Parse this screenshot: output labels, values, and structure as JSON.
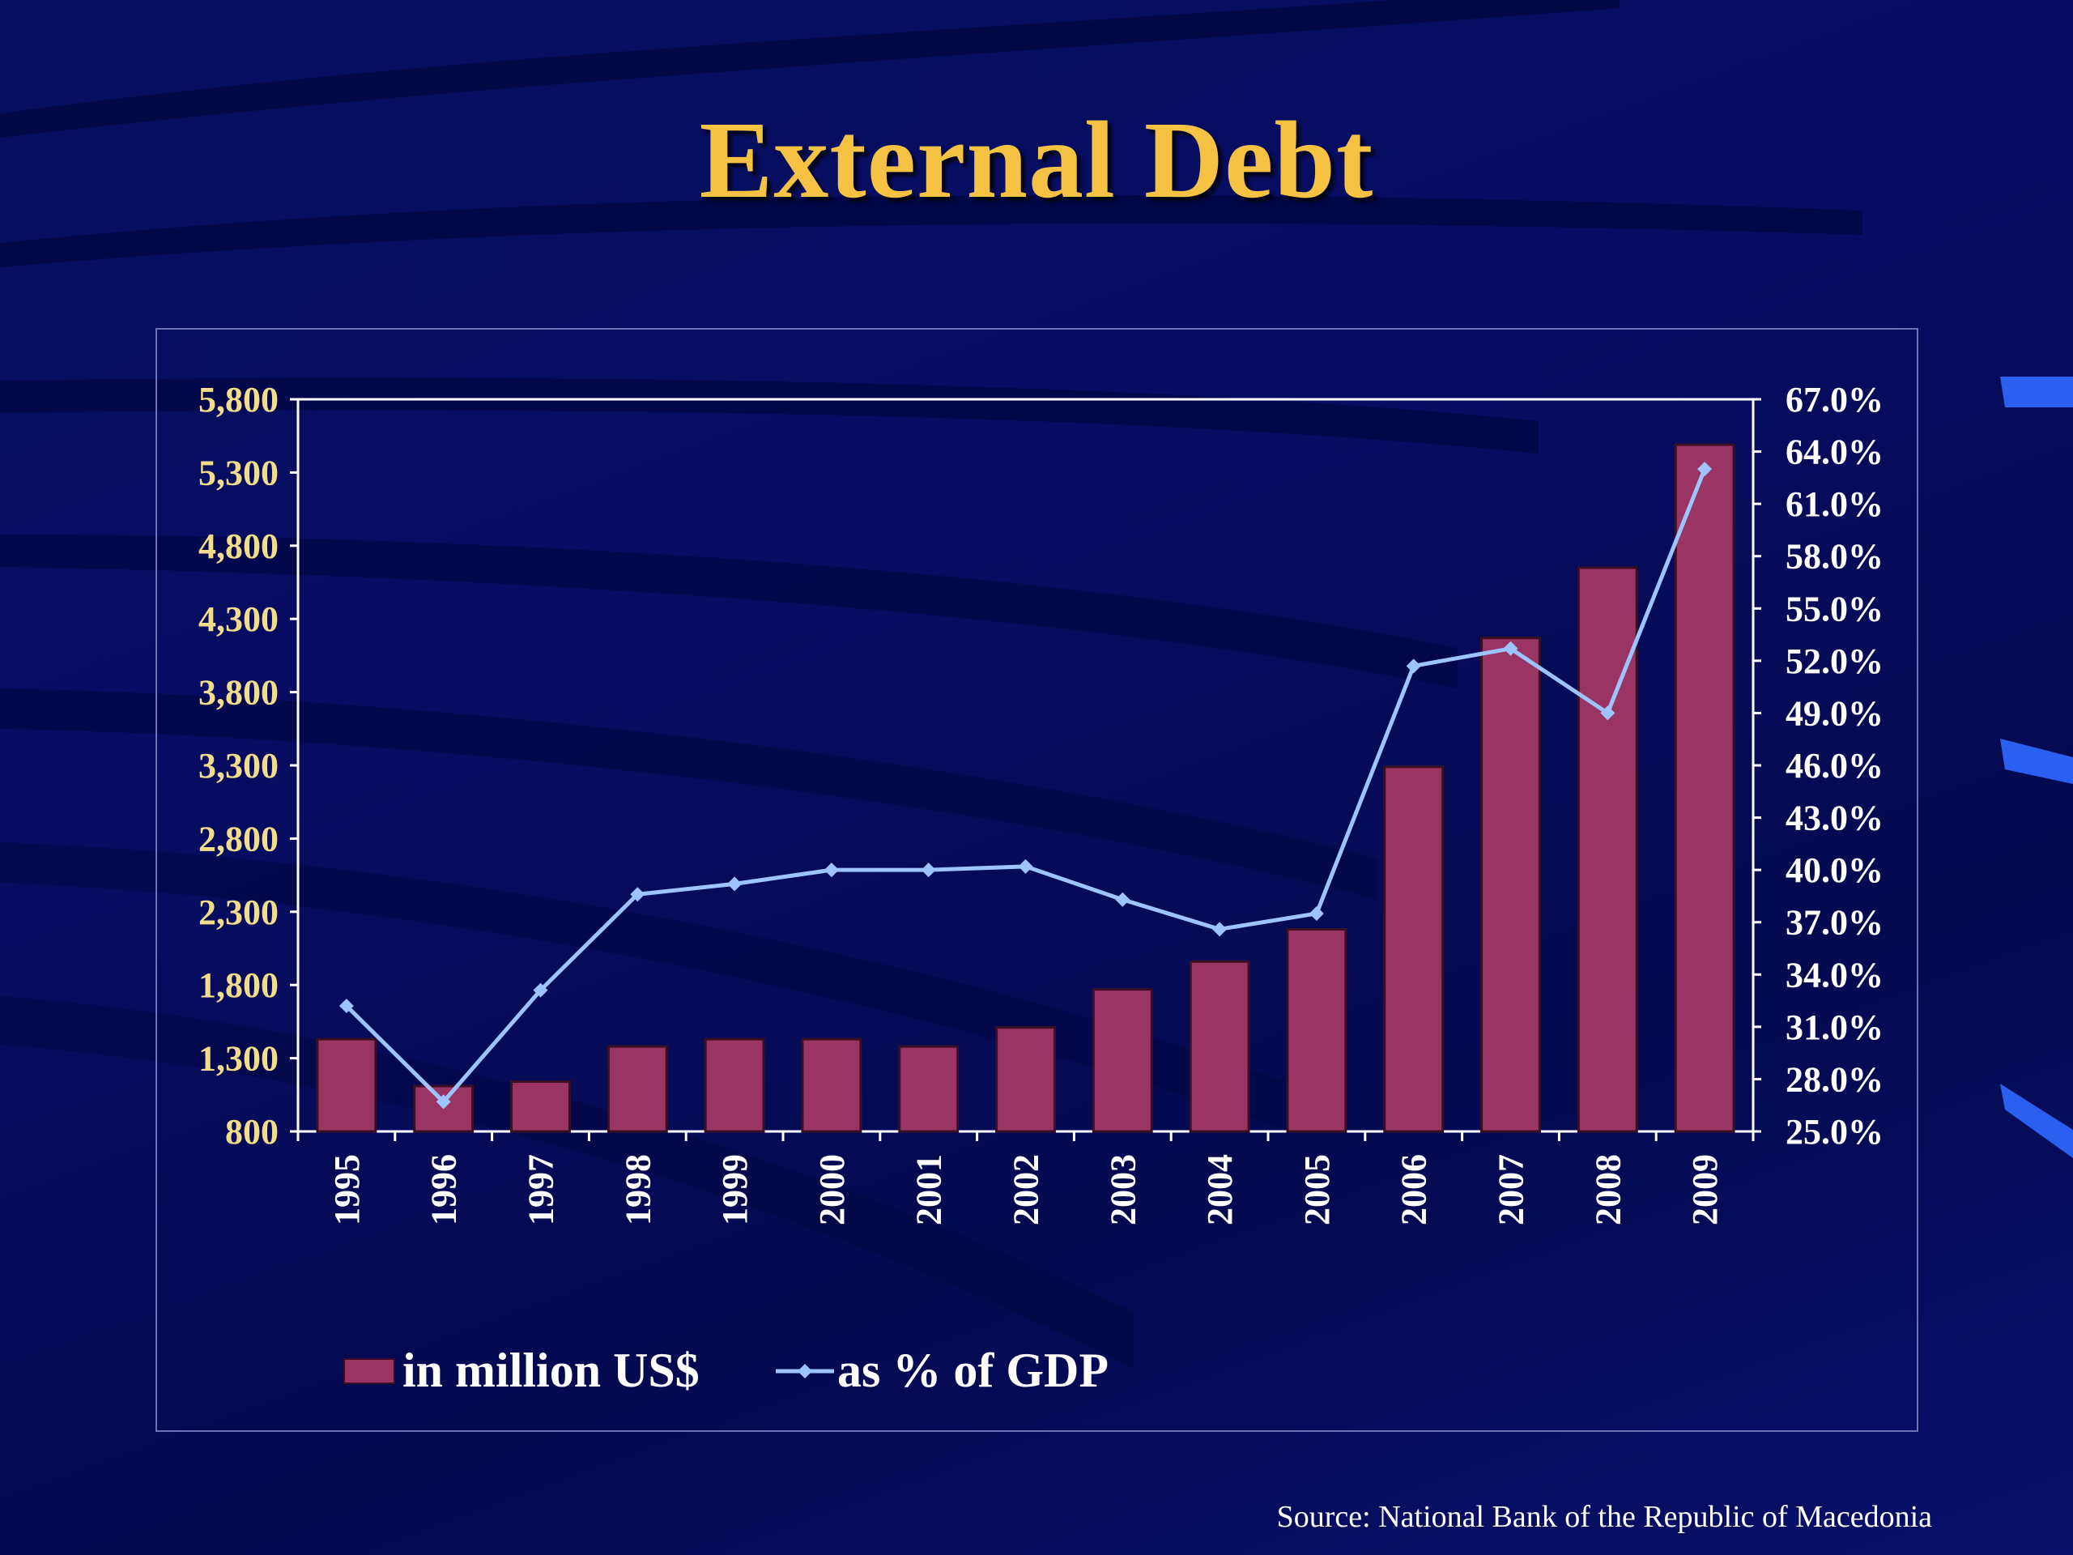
{
  "slide": {
    "title": "External Debt",
    "source": "Source: National Bank of the Republic of Macedonia"
  },
  "colors": {
    "background": "#06105e",
    "title": "#f5c244",
    "bar_fill": "#9a3462",
    "line": "#9ec4ff",
    "left_tick_text": "#f3dc8a",
    "right_tick_text": "#ffffff"
  },
  "chart_data": {
    "type": "bar",
    "title": "",
    "xlabel": "",
    "ylabel": "",
    "categories": [
      "1995",
      "1996",
      "1997",
      "1998",
      "1999",
      "2000",
      "2001",
      "2002",
      "2003",
      "2004",
      "2005",
      "2006",
      "2007",
      "2008",
      "2009"
    ],
    "ylim": [
      800,
      5800
    ],
    "y_ticks": [
      "800",
      "1,300",
      "1,800",
      "2,300",
      "2,800",
      "3,300",
      "3,800",
      "4,300",
      "4,800",
      "5,300",
      "5,800"
    ],
    "y2lim": [
      25.0,
      67.0
    ],
    "y2_ticks": [
      "25.0%",
      "28.0%",
      "31.0%",
      "34.0%",
      "37.0%",
      "40.0%",
      "43.0%",
      "46.0%",
      "49.0%",
      "52.0%",
      "55.0%",
      "58.0%",
      "61.0%",
      "64.0%",
      "67.0%"
    ],
    "series": [
      {
        "name": "in million US$",
        "type": "bar",
        "axis": "left",
        "values": [
          1430,
          1110,
          1140,
          1380,
          1430,
          1430,
          1380,
          1510,
          1770,
          1960,
          2180,
          3290,
          4170,
          4650,
          5490
        ]
      },
      {
        "name": "as % of GDP",
        "type": "line",
        "axis": "right",
        "marker": "diamond",
        "values": [
          32.2,
          26.7,
          33.1,
          38.6,
          39.2,
          40.0,
          40.0,
          40.2,
          38.3,
          36.6,
          37.5,
          51.7,
          52.7,
          49.0,
          63.0
        ]
      }
    ],
    "legend": {
      "position": "bottom-left"
    },
    "grid": false
  }
}
